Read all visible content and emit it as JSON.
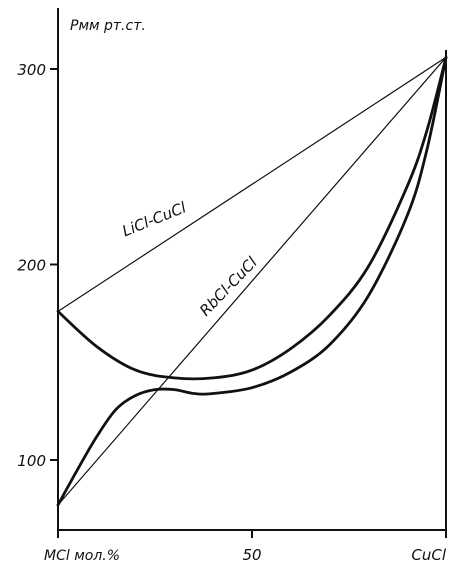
{
  "chart_data": {
    "type": "line",
    "ylabel": "Pмм рт.ст.",
    "xlabel": "MCl мол.%",
    "x_tick_labels": [
      "MCl мол.%",
      "50",
      "CuCl"
    ],
    "x_ticks": [
      0,
      50,
      100
    ],
    "y_ticks": [
      100,
      200,
      300
    ],
    "xlim": [
      0,
      100
    ],
    "ylim": [
      70,
      330
    ],
    "curve_labels": [
      "LiCl-CuCl",
      "RbCl-CuCl"
    ],
    "series": [
      {
        "label_ref": 0,
        "role": "ideal-line",
        "x": [
          0,
          100
        ],
        "y": [
          176,
          306
        ]
      },
      {
        "label_ref": 0,
        "role": "measured-curve",
        "x": [
          0,
          10,
          20,
          30,
          40,
          50,
          60,
          70,
          80,
          90,
          95,
          100
        ],
        "y": [
          176,
          158,
          146,
          142,
          142,
          146,
          157,
          174,
          199,
          240,
          268,
          306
        ]
      },
      {
        "label_ref": 1,
        "role": "ideal-line",
        "x": [
          0,
          100
        ],
        "y": [
          77,
          306
        ]
      },
      {
        "label_ref": 1,
        "role": "measured-curve",
        "x": [
          0,
          5,
          10,
          15,
          20,
          25,
          30,
          35,
          40,
          50,
          60,
          70,
          80,
          90,
          95,
          100
        ],
        "y": [
          77,
          95,
          112,
          126,
          133,
          136,
          136,
          134,
          134,
          137,
          145,
          159,
          184,
          225,
          258,
          306
        ]
      }
    ]
  }
}
